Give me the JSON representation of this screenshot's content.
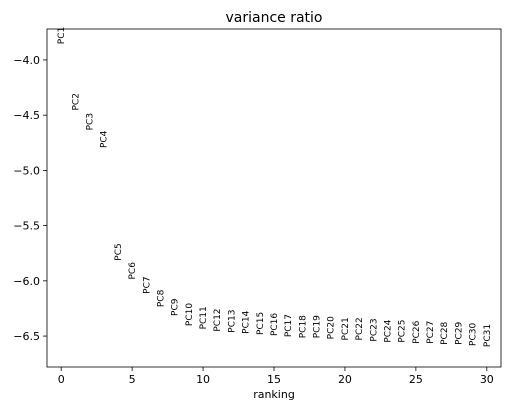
{
  "chart_data": {
    "type": "scatter",
    "title": "variance ratio",
    "xlabel": "ranking",
    "ylabel": "",
    "xlim": [
      -1,
      31
    ],
    "ylim": [
      -6.78,
      -3.72
    ],
    "xticks": [
      "0",
      "5",
      "10",
      "15",
      "20",
      "25",
      "30"
    ],
    "yticks": [
      "−4.0",
      "−4.5",
      "−5.0",
      "−5.5",
      "−6.0",
      "−6.5"
    ],
    "grid": false,
    "marker": "text-labels",
    "points": [
      {
        "x": 0,
        "y": -3.7,
        "label": "PC1"
      },
      {
        "x": 1,
        "y": -4.3,
        "label": "PC2"
      },
      {
        "x": 2,
        "y": -4.48,
        "label": "PC3"
      },
      {
        "x": 3,
        "y": -4.64,
        "label": "PC4"
      },
      {
        "x": 4,
        "y": -5.66,
        "label": "PC5"
      },
      {
        "x": 5,
        "y": -5.83,
        "label": "PC6"
      },
      {
        "x": 6,
        "y": -5.96,
        "label": "PC7"
      },
      {
        "x": 7,
        "y": -6.08,
        "label": "PC8"
      },
      {
        "x": 8,
        "y": -6.16,
        "label": "PC9"
      },
      {
        "x": 9,
        "y": -6.2,
        "label": "PC10"
      },
      {
        "x": 10,
        "y": -6.23,
        "label": "PC11"
      },
      {
        "x": 11,
        "y": -6.25,
        "label": "PC12"
      },
      {
        "x": 12,
        "y": -6.26,
        "label": "PC13"
      },
      {
        "x": 13,
        "y": -6.27,
        "label": "PC14"
      },
      {
        "x": 14,
        "y": -6.28,
        "label": "PC15"
      },
      {
        "x": 15,
        "y": -6.29,
        "label": "PC16"
      },
      {
        "x": 16,
        "y": -6.3,
        "label": "PC17"
      },
      {
        "x": 17,
        "y": -6.31,
        "label": "PC18"
      },
      {
        "x": 18,
        "y": -6.31,
        "label": "PC19"
      },
      {
        "x": 19,
        "y": -6.32,
        "label": "PC20"
      },
      {
        "x": 20,
        "y": -6.33,
        "label": "PC21"
      },
      {
        "x": 21,
        "y": -6.33,
        "label": "PC22"
      },
      {
        "x": 22,
        "y": -6.34,
        "label": "PC23"
      },
      {
        "x": 23,
        "y": -6.35,
        "label": "PC24"
      },
      {
        "x": 24,
        "y": -6.35,
        "label": "PC25"
      },
      {
        "x": 25,
        "y": -6.36,
        "label": "PC26"
      },
      {
        "x": 26,
        "y": -6.36,
        "label": "PC27"
      },
      {
        "x": 27,
        "y": -6.37,
        "label": "PC28"
      },
      {
        "x": 28,
        "y": -6.37,
        "label": "PC29"
      },
      {
        "x": 29,
        "y": -6.38,
        "label": "PC30"
      },
      {
        "x": 30,
        "y": -6.39,
        "label": "PC31"
      }
    ]
  }
}
